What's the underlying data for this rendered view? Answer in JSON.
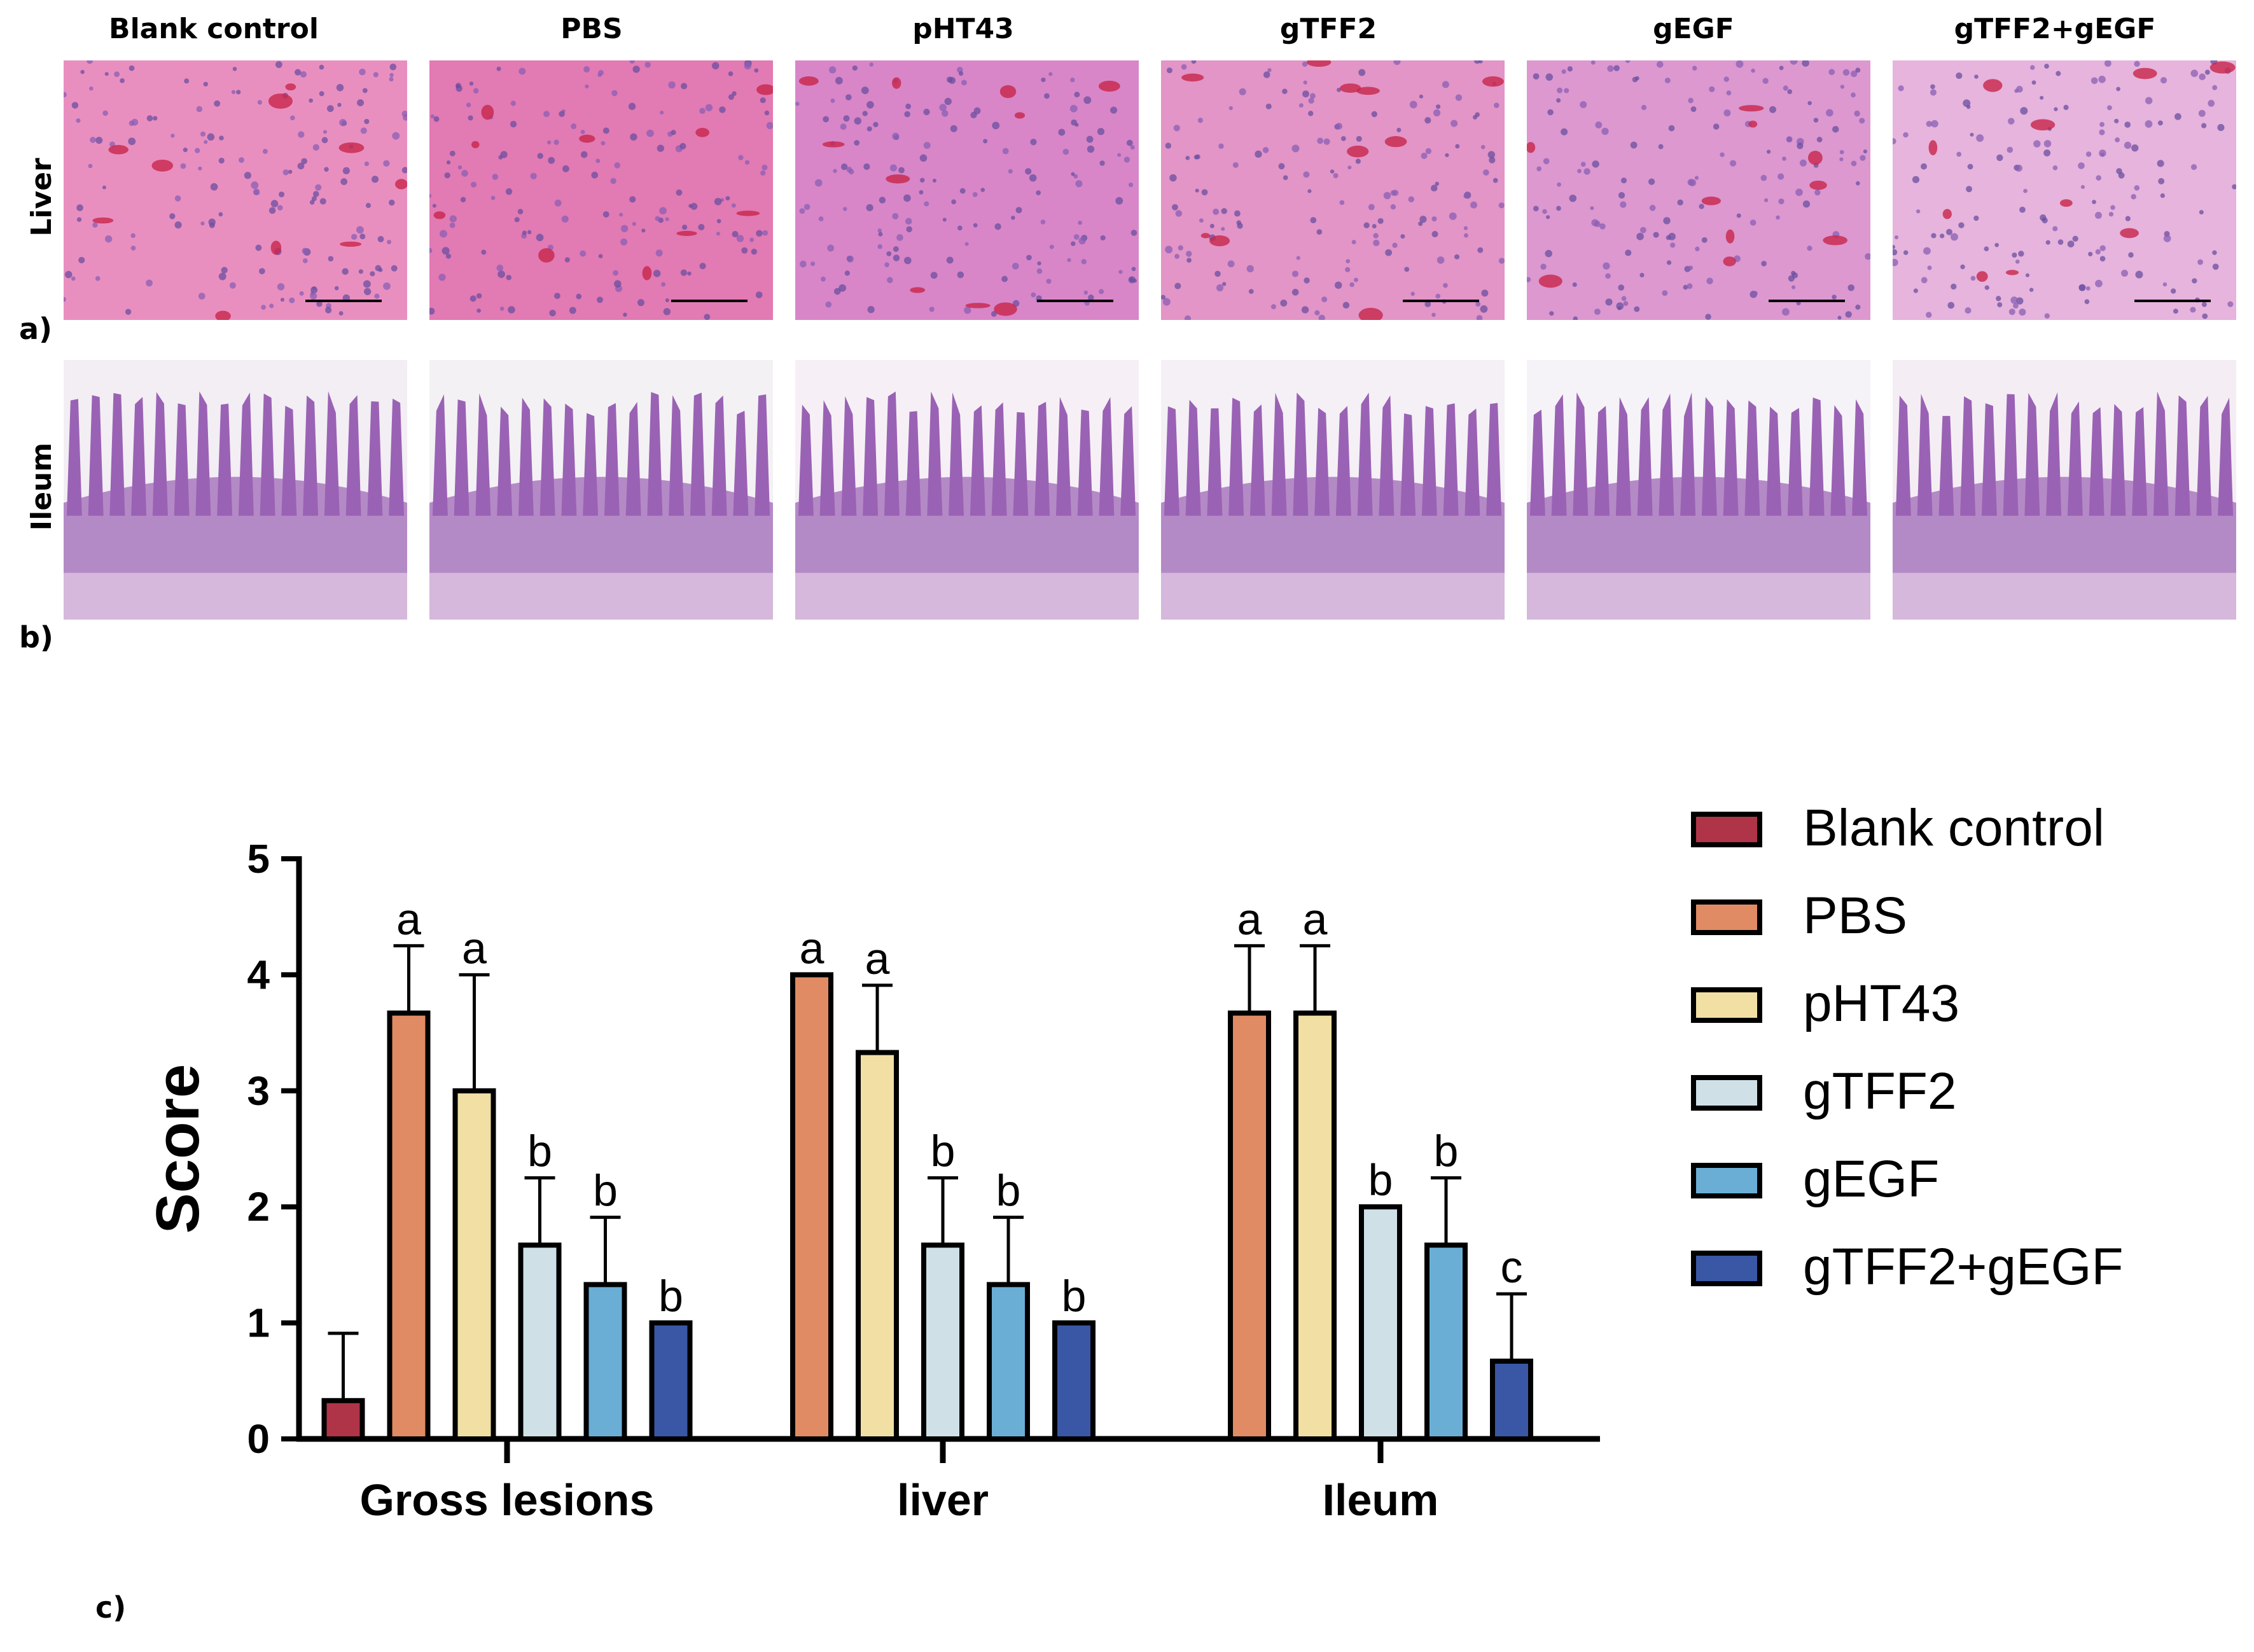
{
  "groups": [
    "Blank control",
    "PBS",
    "pHT43",
    "gTFF2",
    "gEGF",
    "gTFF2+gEGF"
  ],
  "rows": [
    {
      "label": "Liver",
      "panel": "a)"
    },
    {
      "label": "Ileum",
      "panel": "b)"
    }
  ],
  "panel_c": "c)",
  "colors": {
    "Blank control": "#b03448",
    "PBS": "#e08b63",
    "pHT43": "#f1dfa4",
    "gTFF2": "#cfe1e7",
    "gEGF": "#6aaed6",
    "gTFF2+gEGF": "#3a57a6",
    "liver_tissue": "#e486b8",
    "ileum_tissue": "#a66fb8"
  },
  "chart_data": {
    "type": "bar",
    "categories": [
      "Gross lesions",
      "liver",
      "Ileum"
    ],
    "ylabel": "Score",
    "ylim": [
      0,
      5
    ],
    "yticks": [
      "0",
      "1",
      "2",
      "3",
      "4",
      "5"
    ],
    "legend_position": "right",
    "series": [
      {
        "name": "Blank control",
        "values": [
          0.33,
          null,
          null
        ],
        "errors": [
          0.58,
          null,
          null
        ],
        "letters": [
          "",
          "",
          ""
        ]
      },
      {
        "name": "PBS",
        "values": [
          3.67,
          4.0,
          3.67
        ],
        "errors": [
          0.58,
          0,
          0.58
        ],
        "letters": [
          "a",
          "a",
          "a"
        ]
      },
      {
        "name": "pHT43",
        "values": [
          3.0,
          3.33,
          3.67
        ],
        "errors": [
          1.0,
          0.58,
          0.58
        ],
        "letters": [
          "a",
          "a",
          "a"
        ]
      },
      {
        "name": "gTFF2",
        "values": [
          1.67,
          1.67,
          2.0
        ],
        "errors": [
          0.58,
          0.58,
          0
        ],
        "letters": [
          "b",
          "b",
          "b"
        ]
      },
      {
        "name": "gEGF",
        "values": [
          1.33,
          1.33,
          1.67
        ],
        "errors": [
          0.58,
          0.58,
          0.58
        ],
        "letters": [
          "b",
          "b",
          "b"
        ]
      },
      {
        "name": "gTFF2+gEGF",
        "values": [
          1.0,
          1.0,
          0.67
        ],
        "errors": [
          0,
          0,
          0.58
        ],
        "letters": [
          "b",
          "b",
          "c"
        ]
      }
    ]
  }
}
